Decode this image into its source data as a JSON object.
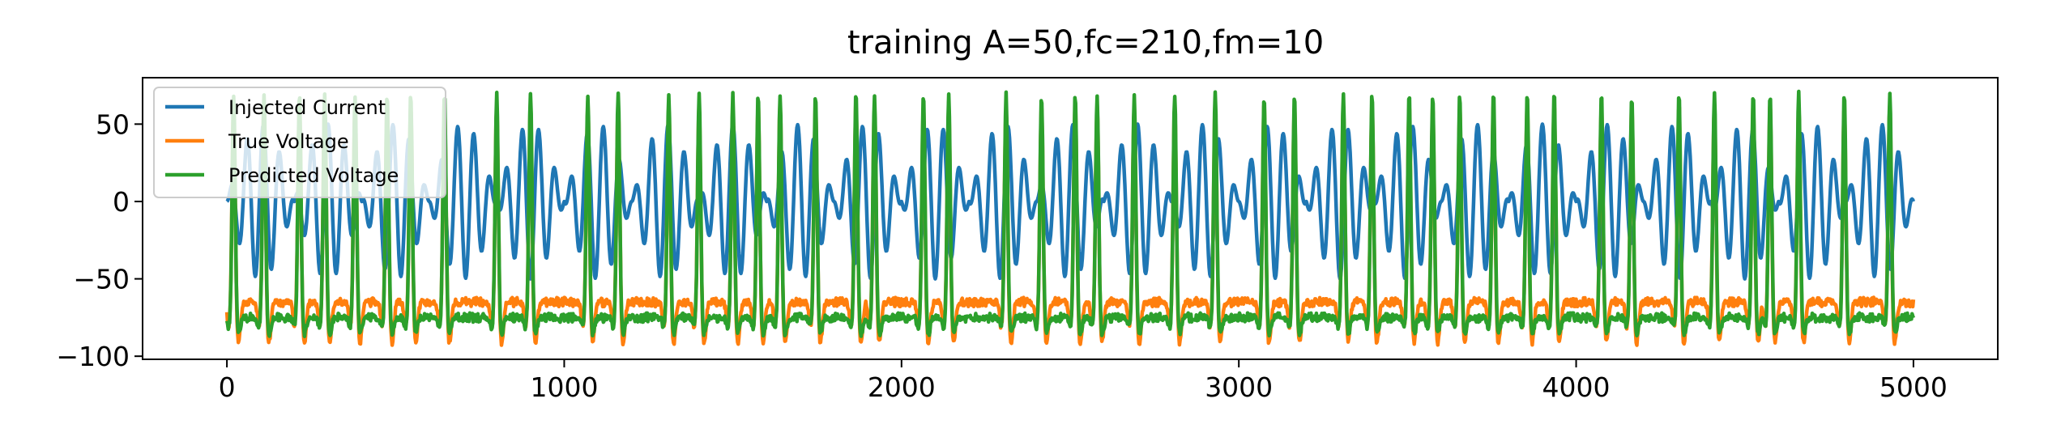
{
  "chart_data": {
    "type": "line",
    "title": "training A=50,fc=210,fm=10",
    "xlabel": "",
    "ylabel": "",
    "xlim": [
      -250,
      5250
    ],
    "ylim": [
      -102,
      80
    ],
    "x_ticks": [
      0,
      1000,
      2000,
      3000,
      4000,
      5000
    ],
    "x_tick_labels": [
      "0",
      "1000",
      "2000",
      "3000",
      "4000",
      "5000"
    ],
    "y_ticks": [
      50,
      0,
      -50,
      -100
    ],
    "y_tick_labels": [
      "50",
      "0",
      "−50",
      "−100"
    ],
    "grid": false,
    "legend_position": "upper-left",
    "series": [
      {
        "name": "Injected Current",
        "color": "#1f77b4",
        "model": "am_sine",
        "amplitude": 50,
        "carrier_period": 48,
        "modulation_period": 200,
        "x_range": [
          0,
          5000
        ]
      },
      {
        "name": "True Voltage",
        "color": "#ff7f0e",
        "model": "spike_train",
        "rest": -65,
        "trough": -92,
        "peak": 65,
        "x_range": [
          0,
          5000
        ],
        "spike_times": [
          20,
          110,
          215,
          290,
          380,
          475,
          545,
          645,
          800,
          900,
          1070,
          1160,
          1310,
          1400,
          1500,
          1575,
          1640,
          1745,
          1865,
          1920,
          2065,
          2140,
          2310,
          2415,
          2515,
          2580,
          2690,
          2810,
          2930,
          3075,
          3165,
          3310,
          3395,
          3505,
          3575,
          3655,
          3755,
          3855,
          3935,
          4075,
          4165,
          4305,
          4410,
          4525,
          4575,
          4660,
          4795,
          4930
        ]
      },
      {
        "name": "Predicted Voltage",
        "color": "#2ca02c",
        "model": "spike_train",
        "rest": -75,
        "trough": -86,
        "peak": 70,
        "x_range": [
          0,
          5000
        ],
        "spike_times": [
          20,
          110,
          215,
          290,
          380,
          475,
          545,
          645,
          800,
          900,
          1070,
          1160,
          1310,
          1400,
          1500,
          1575,
          1640,
          1745,
          1865,
          1920,
          2065,
          2140,
          2310,
          2415,
          2515,
          2580,
          2690,
          2810,
          2930,
          3075,
          3165,
          3310,
          3395,
          3505,
          3575,
          3655,
          3755,
          3855,
          3935,
          4075,
          4165,
          4305,
          4410,
          4525,
          4575,
          4660,
          4795,
          4930
        ]
      }
    ]
  }
}
